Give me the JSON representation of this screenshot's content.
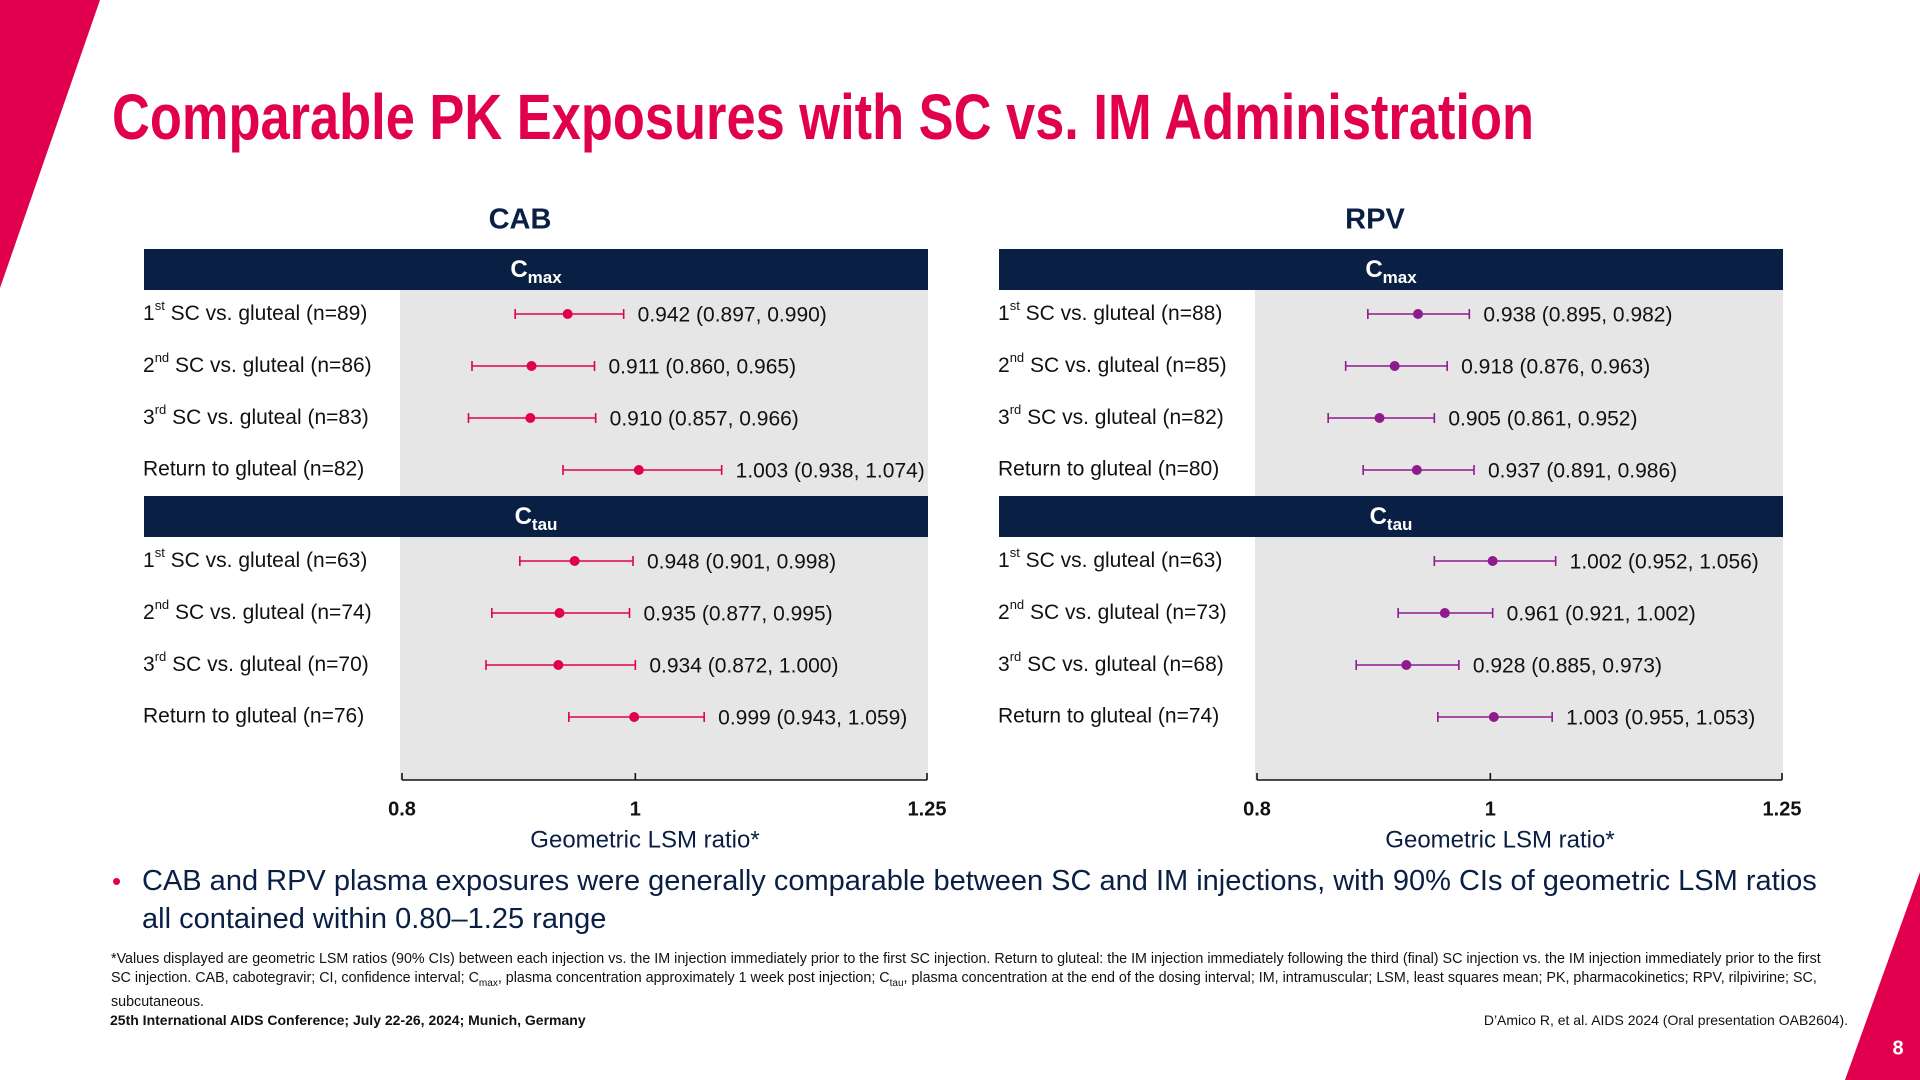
{
  "title": "Comparable PK Exposures with SC vs. IM Administration",
  "chart_data": [
    {
      "type": "forest",
      "title": "CAB",
      "color": "#e0004d",
      "xlim": [
        0.8,
        1.25
      ],
      "xticks": [
        0.8,
        1,
        1.25
      ],
      "xlabel": "Geometric LSM ratio*",
      "sections": [
        {
          "label": "C",
          "label_sub": "max",
          "categories": [
            "1st SC vs. gluteal (n=89)",
            "2nd SC vs. gluteal (n=86)",
            "3rd SC vs. gluteal (n=83)",
            "Return to gluteal (n=82)"
          ],
          "values": [
            0.942,
            0.911,
            0.91,
            1.003
          ],
          "lower": [
            0.897,
            0.86,
            0.857,
            0.938
          ],
          "upper": [
            0.99,
            0.965,
            0.966,
            1.074
          ],
          "value_labels": [
            "0.942 (0.897, 0.990)",
            "0.911 (0.860, 0.965)",
            "0.910 (0.857, 0.966)",
            "1.003 (0.938, 1.074)"
          ]
        },
        {
          "label": "C",
          "label_sub": "tau",
          "categories": [
            "1st SC vs. gluteal (n=63)",
            "2nd SC vs. gluteal (n=74)",
            "3rd SC vs. gluteal (n=70)",
            "Return to gluteal (n=76)"
          ],
          "values": [
            0.948,
            0.935,
            0.934,
            0.999
          ],
          "lower": [
            0.901,
            0.877,
            0.872,
            0.943
          ],
          "upper": [
            0.998,
            0.995,
            1.0,
            1.059
          ],
          "value_labels": [
            "0.948 (0.901, 0.998)",
            "0.935 (0.877, 0.995)",
            "0.934 (0.872, 1.000)",
            "0.999 (0.943, 1.059)"
          ]
        }
      ]
    },
    {
      "type": "forest",
      "title": "RPV",
      "color": "#8e1a8e",
      "xlim": [
        0.8,
        1.25
      ],
      "xticks": [
        0.8,
        1,
        1.25
      ],
      "xlabel": "Geometric LSM ratio*",
      "sections": [
        {
          "label": "C",
          "label_sub": "max",
          "categories": [
            "1st SC vs. gluteal (n=88)",
            "2nd SC vs. gluteal (n=85)",
            "3rd SC vs. gluteal (n=82)",
            "Return to gluteal (n=80)"
          ],
          "values": [
            0.938,
            0.918,
            0.905,
            0.937
          ],
          "lower": [
            0.895,
            0.876,
            0.861,
            0.891
          ],
          "upper": [
            0.982,
            0.963,
            0.952,
            0.986
          ],
          "value_labels": [
            "0.938 (0.895, 0.982)",
            "0.918 (0.876, 0.963)",
            "0.905 (0.861, 0.952)",
            "0.937 (0.891, 0.986)"
          ]
        },
        {
          "label": "C",
          "label_sub": "tau",
          "categories": [
            "1st SC vs. gluteal (n=63)",
            "2nd SC vs. gluteal (n=73)",
            "3rd SC vs. gluteal (n=68)",
            "Return to gluteal (n=74)"
          ],
          "values": [
            1.002,
            0.961,
            0.928,
            1.003
          ],
          "lower": [
            0.952,
            0.921,
            0.885,
            0.955
          ],
          "upper": [
            1.056,
            1.002,
            0.973,
            1.053
          ],
          "value_labels": [
            "1.002 (0.952, 1.056)",
            "0.961 (0.921, 1.002)",
            "0.928 (0.885, 0.973)",
            "1.003 (0.955, 1.053)"
          ]
        }
      ]
    }
  ],
  "bullet": "CAB and RPV plasma exposures were generally comparable between SC and IM injections, with 90% CIs of geometric LSM ratios all contained within 0.80–1.25 range",
  "footnote": [
    "*Values displayed are geometric LSM ratios (90% CIs) between each injection vs. the IM injection immediately prior to the first SC injection. Return to gluteal: the IM injection immediately following the third (final) SC injection vs. the IM injection immediately prior to the first SC injection. CAB, cabotegravir; CI, confidence interval; C",
    "max",
    ", plasma concentration approximately 1 week post injection; C",
    "tau",
    ", plasma concentration at the end of the dosing interval; IM, intramuscular; LSM, least squares mean; PK, pharmacokinetics; RPV, rilpivirine; SC, subcutaneous."
  ],
  "conference": "25th International AIDS Conference; July 22-26, 2024; Munich, Germany",
  "citation": "D’Amico R, et al. AIDS 2024 (Oral presentation OAB2604).",
  "page_number": 8
}
